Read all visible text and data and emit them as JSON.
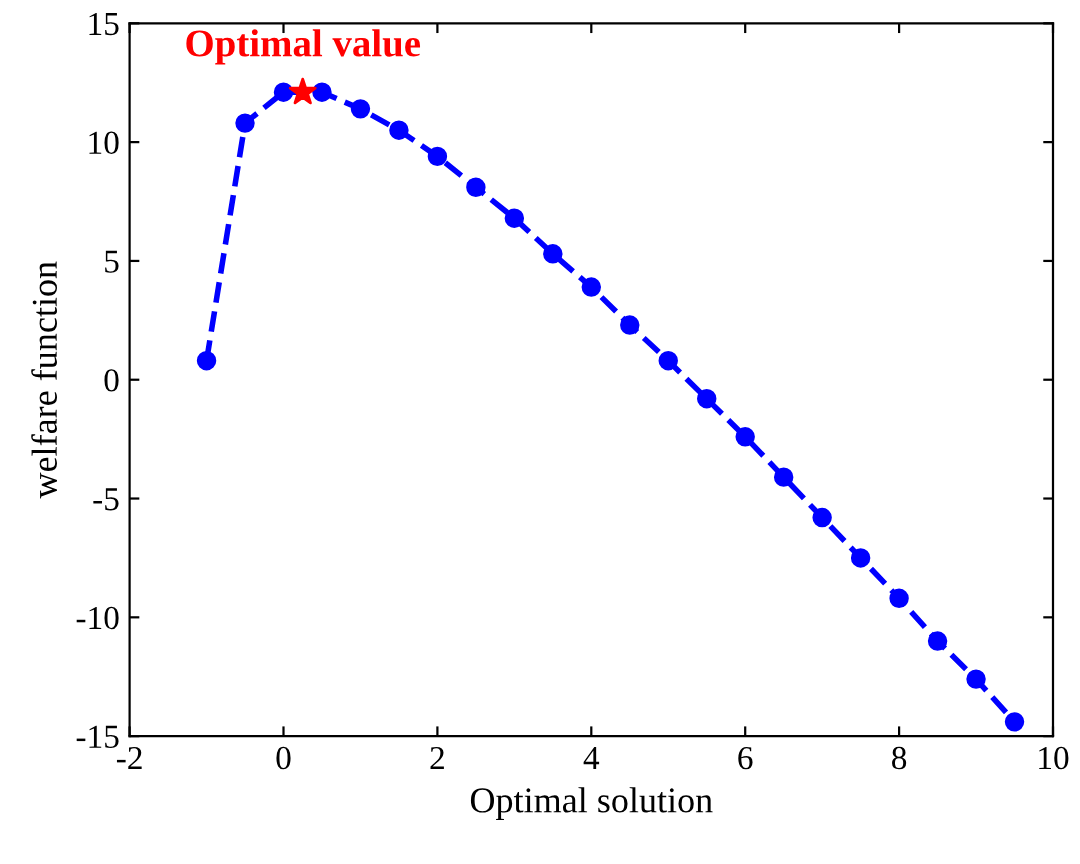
{
  "chart_data": {
    "type": "line",
    "xlabel": "Optimal solution",
    "ylabel": "welfare function",
    "xlim": [
      -2,
      10
    ],
    "xticks": [
      -2,
      0,
      2,
      4,
      6,
      8,
      10
    ],
    "ylim": [
      -15,
      15
    ],
    "yticks": [
      -15,
      -10,
      -5,
      0,
      5,
      10,
      15
    ],
    "grid": false,
    "legend": false,
    "series": [
      {
        "color": "#0000ff",
        "marker": "circle",
        "line_style": "dashed",
        "x": [
          -1,
          -0.5,
          0,
          0.5,
          1,
          1.5,
          2,
          2.5,
          3,
          3.5,
          4,
          4.5,
          5,
          5.5,
          6,
          6.5,
          7,
          7.5,
          8,
          8.5,
          9,
          9.5
        ],
        "values": [
          0.8,
          10.8,
          12.1,
          12.1,
          11.4,
          10.5,
          9.4,
          8.1,
          6.8,
          5.3,
          3.9,
          2.3,
          0.8,
          -0.8,
          -2.4,
          -4.1,
          -5.8,
          -7.5,
          -9.2,
          -11,
          -12.6,
          -14.4
        ]
      },
      {
        "type": "scatter",
        "color": "#ff0000",
        "marker": "star",
        "x": [
          0.25
        ],
        "values": [
          12.1
        ]
      }
    ],
    "annotations": [
      {
        "text": "Optimal value",
        "x": 0.25,
        "y": 12.1
      }
    ]
  }
}
